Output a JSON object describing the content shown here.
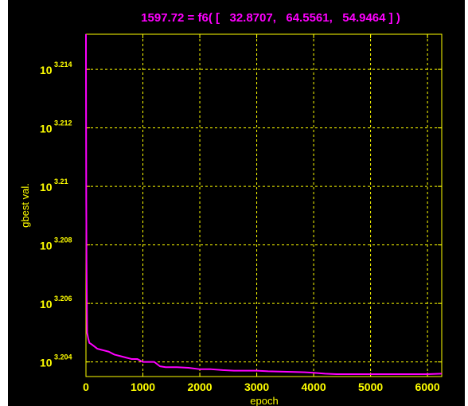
{
  "chart_data": {
    "type": "line",
    "title": "1597.72 = f6( [   32.8707,   64.5561,   54.9464 ] )",
    "xlabel": "epoch",
    "ylabel": "gbest val.",
    "xlim": [
      0,
      6250
    ],
    "ylim": [
      3.2035,
      3.2152
    ],
    "y_scale": "log",
    "grid": true,
    "x_ticks": [
      0,
      1000,
      2000,
      3000,
      4000,
      5000,
      6000
    ],
    "x_tick_labels": [
      "0",
      "1000",
      "2000",
      "3000",
      "4000",
      "5000",
      "6000"
    ],
    "y_ticks": [
      3.204,
      3.206,
      3.208,
      3.21,
      3.212,
      3.214
    ],
    "y_tick_base": "10",
    "y_tick_exponents": [
      "3.204",
      "3.206",
      "3.208",
      "3.21",
      "3.212",
      "3.214"
    ],
    "series": [
      {
        "x": [
          0,
          1,
          3,
          5,
          10,
          20,
          40,
          60,
          100,
          200,
          300,
          400,
          500,
          600,
          700,
          800,
          900,
          1000,
          1100,
          1200,
          1300,
          1400,
          1600,
          1800,
          2000,
          2200,
          2400,
          2600,
          2800,
          3000,
          3200,
          3400,
          3600,
          3800,
          4000,
          4200,
          4400,
          4600,
          4800,
          5000,
          5200,
          5400,
          5600,
          5800,
          6000,
          6250
        ],
        "y": [
          3.2152,
          3.2135,
          3.2115,
          3.2095,
          3.2075,
          3.205,
          3.2048,
          3.20465,
          3.2046,
          3.20445,
          3.2044,
          3.20435,
          3.20425,
          3.2042,
          3.20415,
          3.2041,
          3.2041,
          3.204,
          3.204,
          3.204,
          3.20385,
          3.20382,
          3.20382,
          3.2038,
          3.20375,
          3.20375,
          3.20372,
          3.2037,
          3.2037,
          3.2037,
          3.20368,
          3.20367,
          3.20366,
          3.20365,
          3.20363,
          3.2036,
          3.20358,
          3.20358,
          3.20358,
          3.20358,
          3.20358,
          3.20358,
          3.20358,
          3.20358,
          3.20358,
          3.2036
        ]
      }
    ]
  },
  "colors": {
    "figure_background": "#ffffff",
    "plot_background": "#000000",
    "axes": "#ffff00",
    "grid": "#ffff00",
    "line": "#ff00ff",
    "title": "#ff00ff"
  }
}
